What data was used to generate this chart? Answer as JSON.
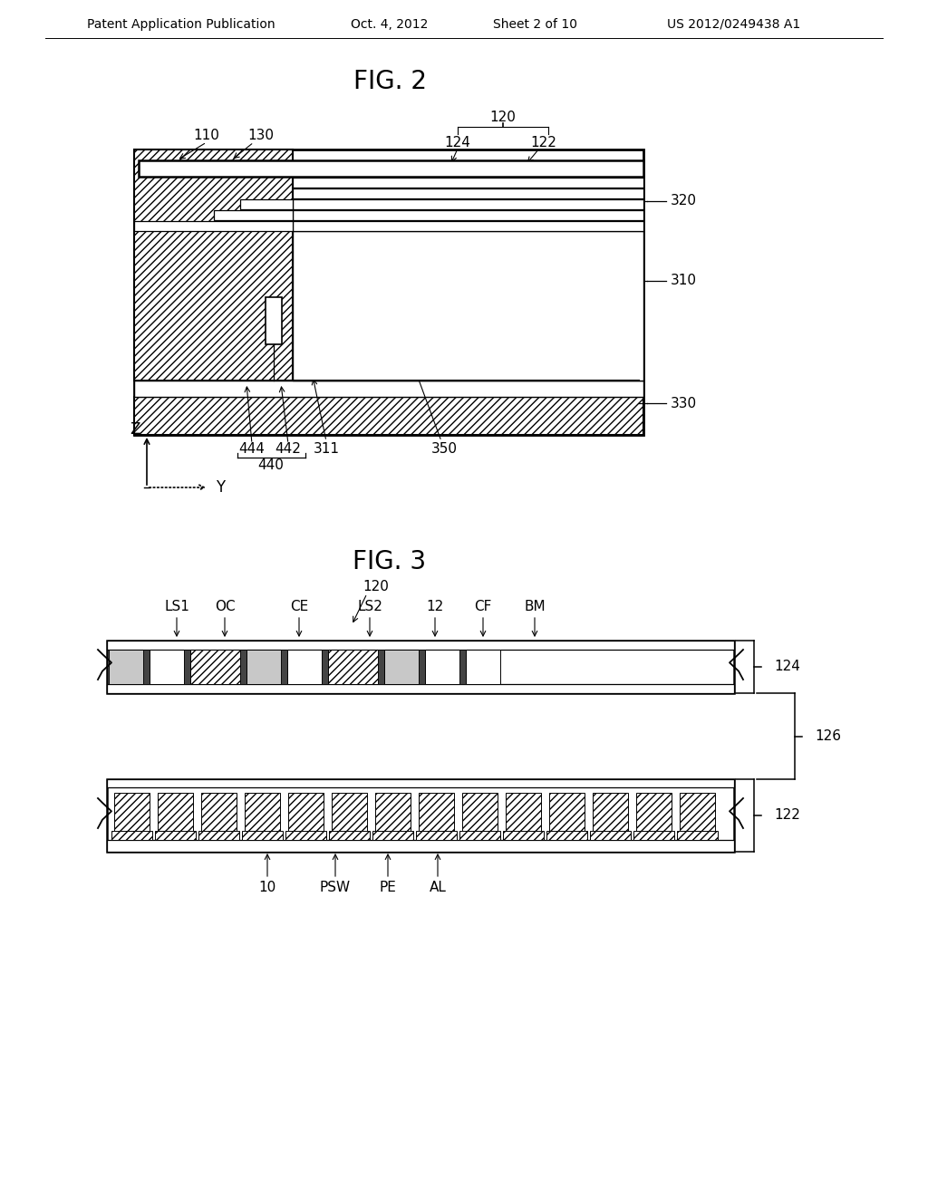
{
  "bg_color": "#ffffff",
  "header_text": "Patent Application Publication",
  "header_date": "Oct. 4, 2012",
  "header_sheet": "Sheet 2 of 10",
  "header_patent": "US 2012/0249438 A1",
  "fig2_title": "FIG. 2",
  "fig3_title": "FIG. 3",
  "line_color": "#000000",
  "label_fontsize": 11,
  "title_fontsize": 20,
  "header_fontsize": 10
}
